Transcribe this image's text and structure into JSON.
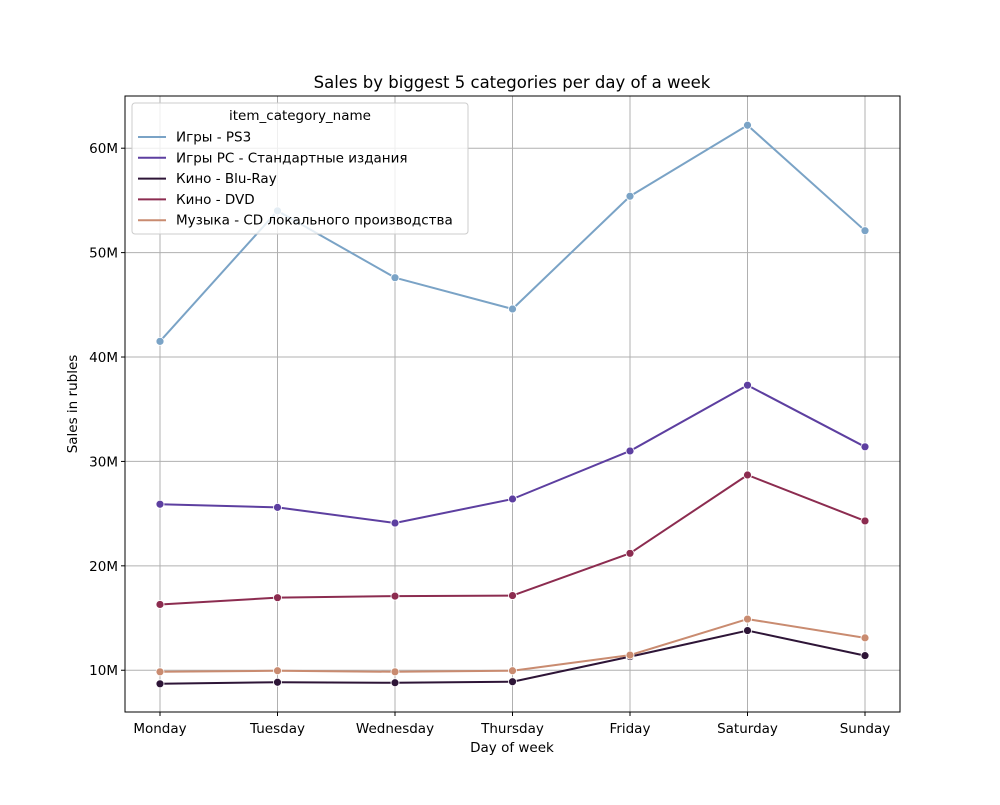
{
  "chart_data": {
    "type": "line",
    "title": "Sales by biggest 5 categories per day of a week",
    "xlabel": "Day of week",
    "ylabel": "Sales in rubles",
    "categories": [
      "Monday",
      "Tuesday",
      "Wednesday",
      "Thursday",
      "Friday",
      "Saturday",
      "Sunday"
    ],
    "ylim": [
      6000000,
      65000000
    ],
    "yticks": [
      10000000,
      20000000,
      30000000,
      40000000,
      50000000,
      60000000
    ],
    "ytick_labels": [
      "10M",
      "20M",
      "30M",
      "40M",
      "50M",
      "60M"
    ],
    "grid": true,
    "legend": {
      "title": "item_category_name",
      "position": "top-left"
    },
    "series": [
      {
        "name": "Игры - PS3",
        "color": "#7aa3c6",
        "values": [
          41500000,
          54000000,
          47600000,
          44600000,
          55400000,
          62200000,
          52100000
        ]
      },
      {
        "name": "Игры PC - Стандартные издания",
        "color": "#5d3fa0",
        "values": [
          25900000,
          25600000,
          24100000,
          26400000,
          31000000,
          37300000,
          31400000
        ]
      },
      {
        "name": "Кино - Blu-Ray",
        "color": "#2e1537",
        "values": [
          8700000,
          8850000,
          8800000,
          8900000,
          11300000,
          13800000,
          11400000
        ]
      },
      {
        "name": "Кино - DVD",
        "color": "#8c2c50",
        "values": [
          16300000,
          16950000,
          17100000,
          17150000,
          21200000,
          28700000,
          24300000
        ]
      },
      {
        "name": "Музыка - CD локального производства",
        "color": "#c98b70",
        "values": [
          9850000,
          9950000,
          9850000,
          9950000,
          11450000,
          14900000,
          13100000
        ]
      }
    ]
  }
}
